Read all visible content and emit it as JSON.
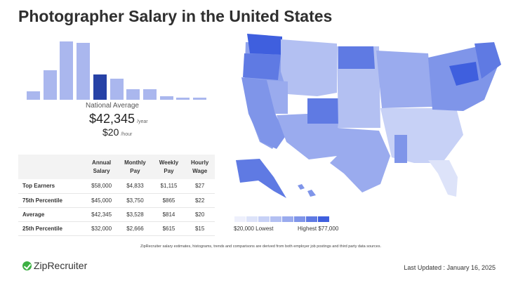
{
  "title": "Photographer Salary in the United States",
  "histogram": {
    "bars": [
      0.14,
      0.49,
      0.97,
      0.94,
      0.42,
      0.35,
      0.17,
      0.17,
      0.06,
      0.04,
      0.03
    ],
    "active_index": 4
  },
  "national": {
    "label": "National Average",
    "annual": "$42,345",
    "annual_unit": "/year",
    "hourly": "$20",
    "hourly_unit": "/hour"
  },
  "table": {
    "headers": [
      "Annual\nSalary",
      "Monthly\nPay",
      "Weekly\nPay",
      "Hourly\nWage"
    ],
    "rows": [
      {
        "label": "Top Earners",
        "cells": [
          "$58,000",
          "$4,833",
          "$1,115",
          "$27"
        ]
      },
      {
        "label": "75th Percentile",
        "cells": [
          "$45,000",
          "$3,750",
          "$865",
          "$22"
        ]
      },
      {
        "label": "Average",
        "cells": [
          "$42,345",
          "$3,528",
          "$814",
          "$20"
        ]
      },
      {
        "label": "25th Percentile",
        "cells": [
          "$32,000",
          "$2,666",
          "$615",
          "$15"
        ]
      }
    ]
  },
  "legend": {
    "low": "$20,000 Lowest",
    "high": "Highest $77,000",
    "colors": [
      "#eef0fc",
      "#dde3f9",
      "#c7d1f6",
      "#b3c0f2",
      "#9aabee",
      "#7f95e9",
      "#5f7ae3",
      "#3f5fde"
    ]
  },
  "footnote": "ZipRecruiter salary estimates, histograms, trends and comparisons are derived from both employer job postings and third party data sources.",
  "logo": "ZipRecruiter",
  "updated": "Last Updated : January 16, 2025"
}
